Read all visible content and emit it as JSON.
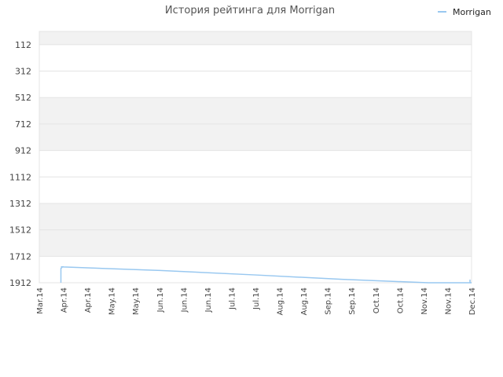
{
  "chart_data": {
    "type": "line",
    "title": "История рейтинга для Morrigan",
    "legend_position": "top-right",
    "grid": true,
    "y_inverted": true,
    "ylim": [
      12,
      1912
    ],
    "y_ticks": [
      112,
      312,
      512,
      712,
      912,
      1112,
      1312,
      1512,
      1712,
      1912
    ],
    "x_ticks": [
      "Mar.14",
      "Apr.14",
      "Apr.14",
      "May.14",
      "May.14",
      "Jun.14",
      "Jun.14",
      "Jun.14",
      "Jul.14",
      "Jul.14",
      "Aug.14",
      "Aug.14",
      "Sep.14",
      "Sep.14",
      "Oct.14",
      "Oct.14",
      "Nov.14",
      "Nov.14",
      "Dec.14"
    ],
    "series": [
      {
        "name": "Morrigan",
        "color": "#99c8f0",
        "x": [
          0,
          0.05,
          0.28,
          0.5,
          0.7,
          0.9,
          1.0
        ],
        "values": [
          1912,
          1792,
          1819,
          1853,
          1886,
          1912,
          1912
        ]
      }
    ],
    "band_colors": [
      "#ececec",
      "#ffffff"
    ]
  }
}
